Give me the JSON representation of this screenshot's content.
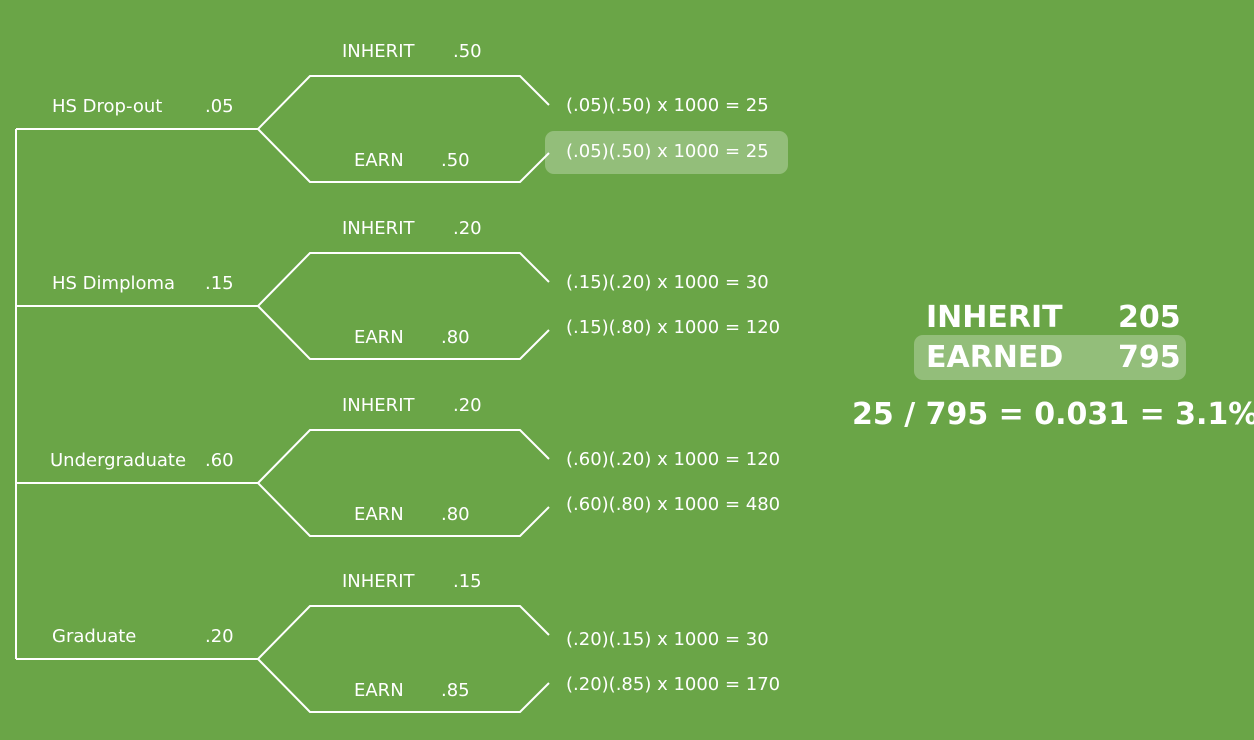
{
  "branches": [
    {
      "category": "HS Drop-out",
      "p": ".05",
      "inherit_label": "INHERIT",
      "inherit_p": ".50",
      "earn_label": "EARN",
      "earn_p": ".50",
      "calc_inherit": "(.05)(.50) x 1000 = 25",
      "calc_earn": "(.05)(.50) x 1000 = 25"
    },
    {
      "category": "HS Dimploma",
      "p": ".15",
      "inherit_label": "INHERIT",
      "inherit_p": ".20",
      "earn_label": "EARN",
      "earn_p": ".80",
      "calc_inherit": "(.15)(.20) x 1000 = 30",
      "calc_earn": "(.15)(.80) x 1000 = 120"
    },
    {
      "category": "Undergraduate",
      "p": ".60",
      "inherit_label": "INHERIT",
      "inherit_p": ".20",
      "earn_label": "EARN",
      "earn_p": ".80",
      "calc_inherit": "(.60)(.20) x 1000 = 120",
      "calc_earn": "(.60)(.80) x 1000 = 480"
    },
    {
      "category": "Graduate",
      "p": ".20",
      "inherit_label": "INHERIT",
      "inherit_p": ".15",
      "earn_label": "EARN",
      "earn_p": ".85",
      "calc_inherit": "(.20)(.15) x 1000 = 30",
      "calc_earn": "(.20)(.85) x 1000 = 170"
    }
  ],
  "summary": {
    "inherit_label": "INHERIT",
    "inherit_value": "205",
    "earned_label": "EARNED",
    "earned_value": "795",
    "result": "25 / 795 = 0.031 = 3.1%"
  },
  "colors": {
    "background": "#6aa547",
    "line": "#ffffff",
    "highlight": "rgba(255,255,255,0.28)"
  }
}
